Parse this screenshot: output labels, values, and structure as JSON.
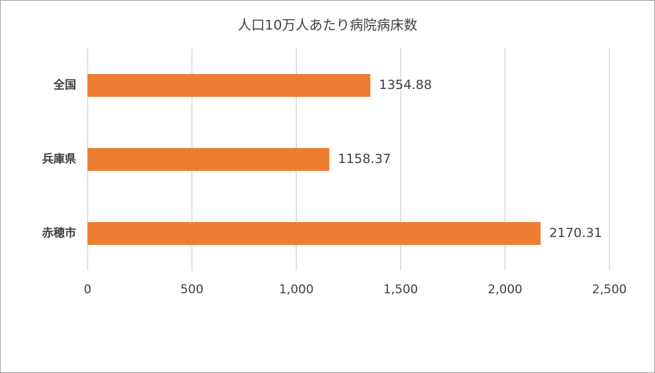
{
  "chart_data": {
    "type": "bar",
    "orientation": "horizontal",
    "title": "人口10万人あたり病院病床数",
    "categories": [
      "全国",
      "兵庫県",
      "赤穂市"
    ],
    "values": [
      1354.88,
      1158.37,
      2170.31
    ],
    "color": "#ed7d31",
    "xlim": [
      0,
      2500
    ],
    "xticks": [
      0,
      500,
      {
        "value": 1000,
        "label": "1,000"
      },
      {
        "value": 1500,
        "label": "1,500"
      },
      {
        "value": 2000,
        "label": "2,000"
      },
      {
        "value": 2500,
        "label": "2,500"
      }
    ],
    "grid": true
  }
}
